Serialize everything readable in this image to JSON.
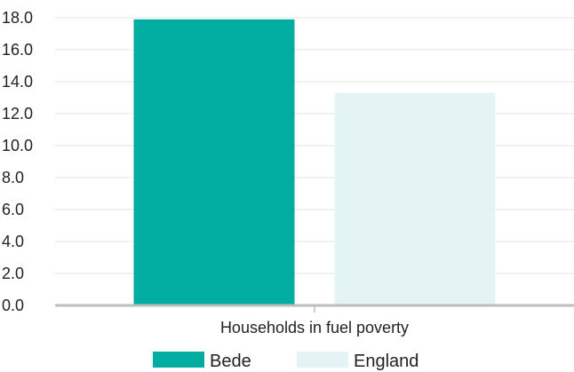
{
  "chart_data": {
    "type": "bar",
    "categories": [
      "Households in fuel poverty"
    ],
    "series": [
      {
        "name": "Bede",
        "values": [
          17.9
        ],
        "color": "#00ada0"
      },
      {
        "name": "England",
        "values": [
          13.3
        ],
        "color": "#e4f3f3"
      }
    ],
    "ylim": [
      0,
      18
    ],
    "yticks": [
      "0.0",
      "2.0",
      "4.0",
      "6.0",
      "8.0",
      "10.0",
      "12.0",
      "14.0",
      "16.0",
      "18.0"
    ],
    "grid": true,
    "legend_position": "bottom-center",
    "colors": {
      "grid": "#e6e6e6",
      "axis": "#bdbdbd",
      "text": "#222222"
    }
  }
}
